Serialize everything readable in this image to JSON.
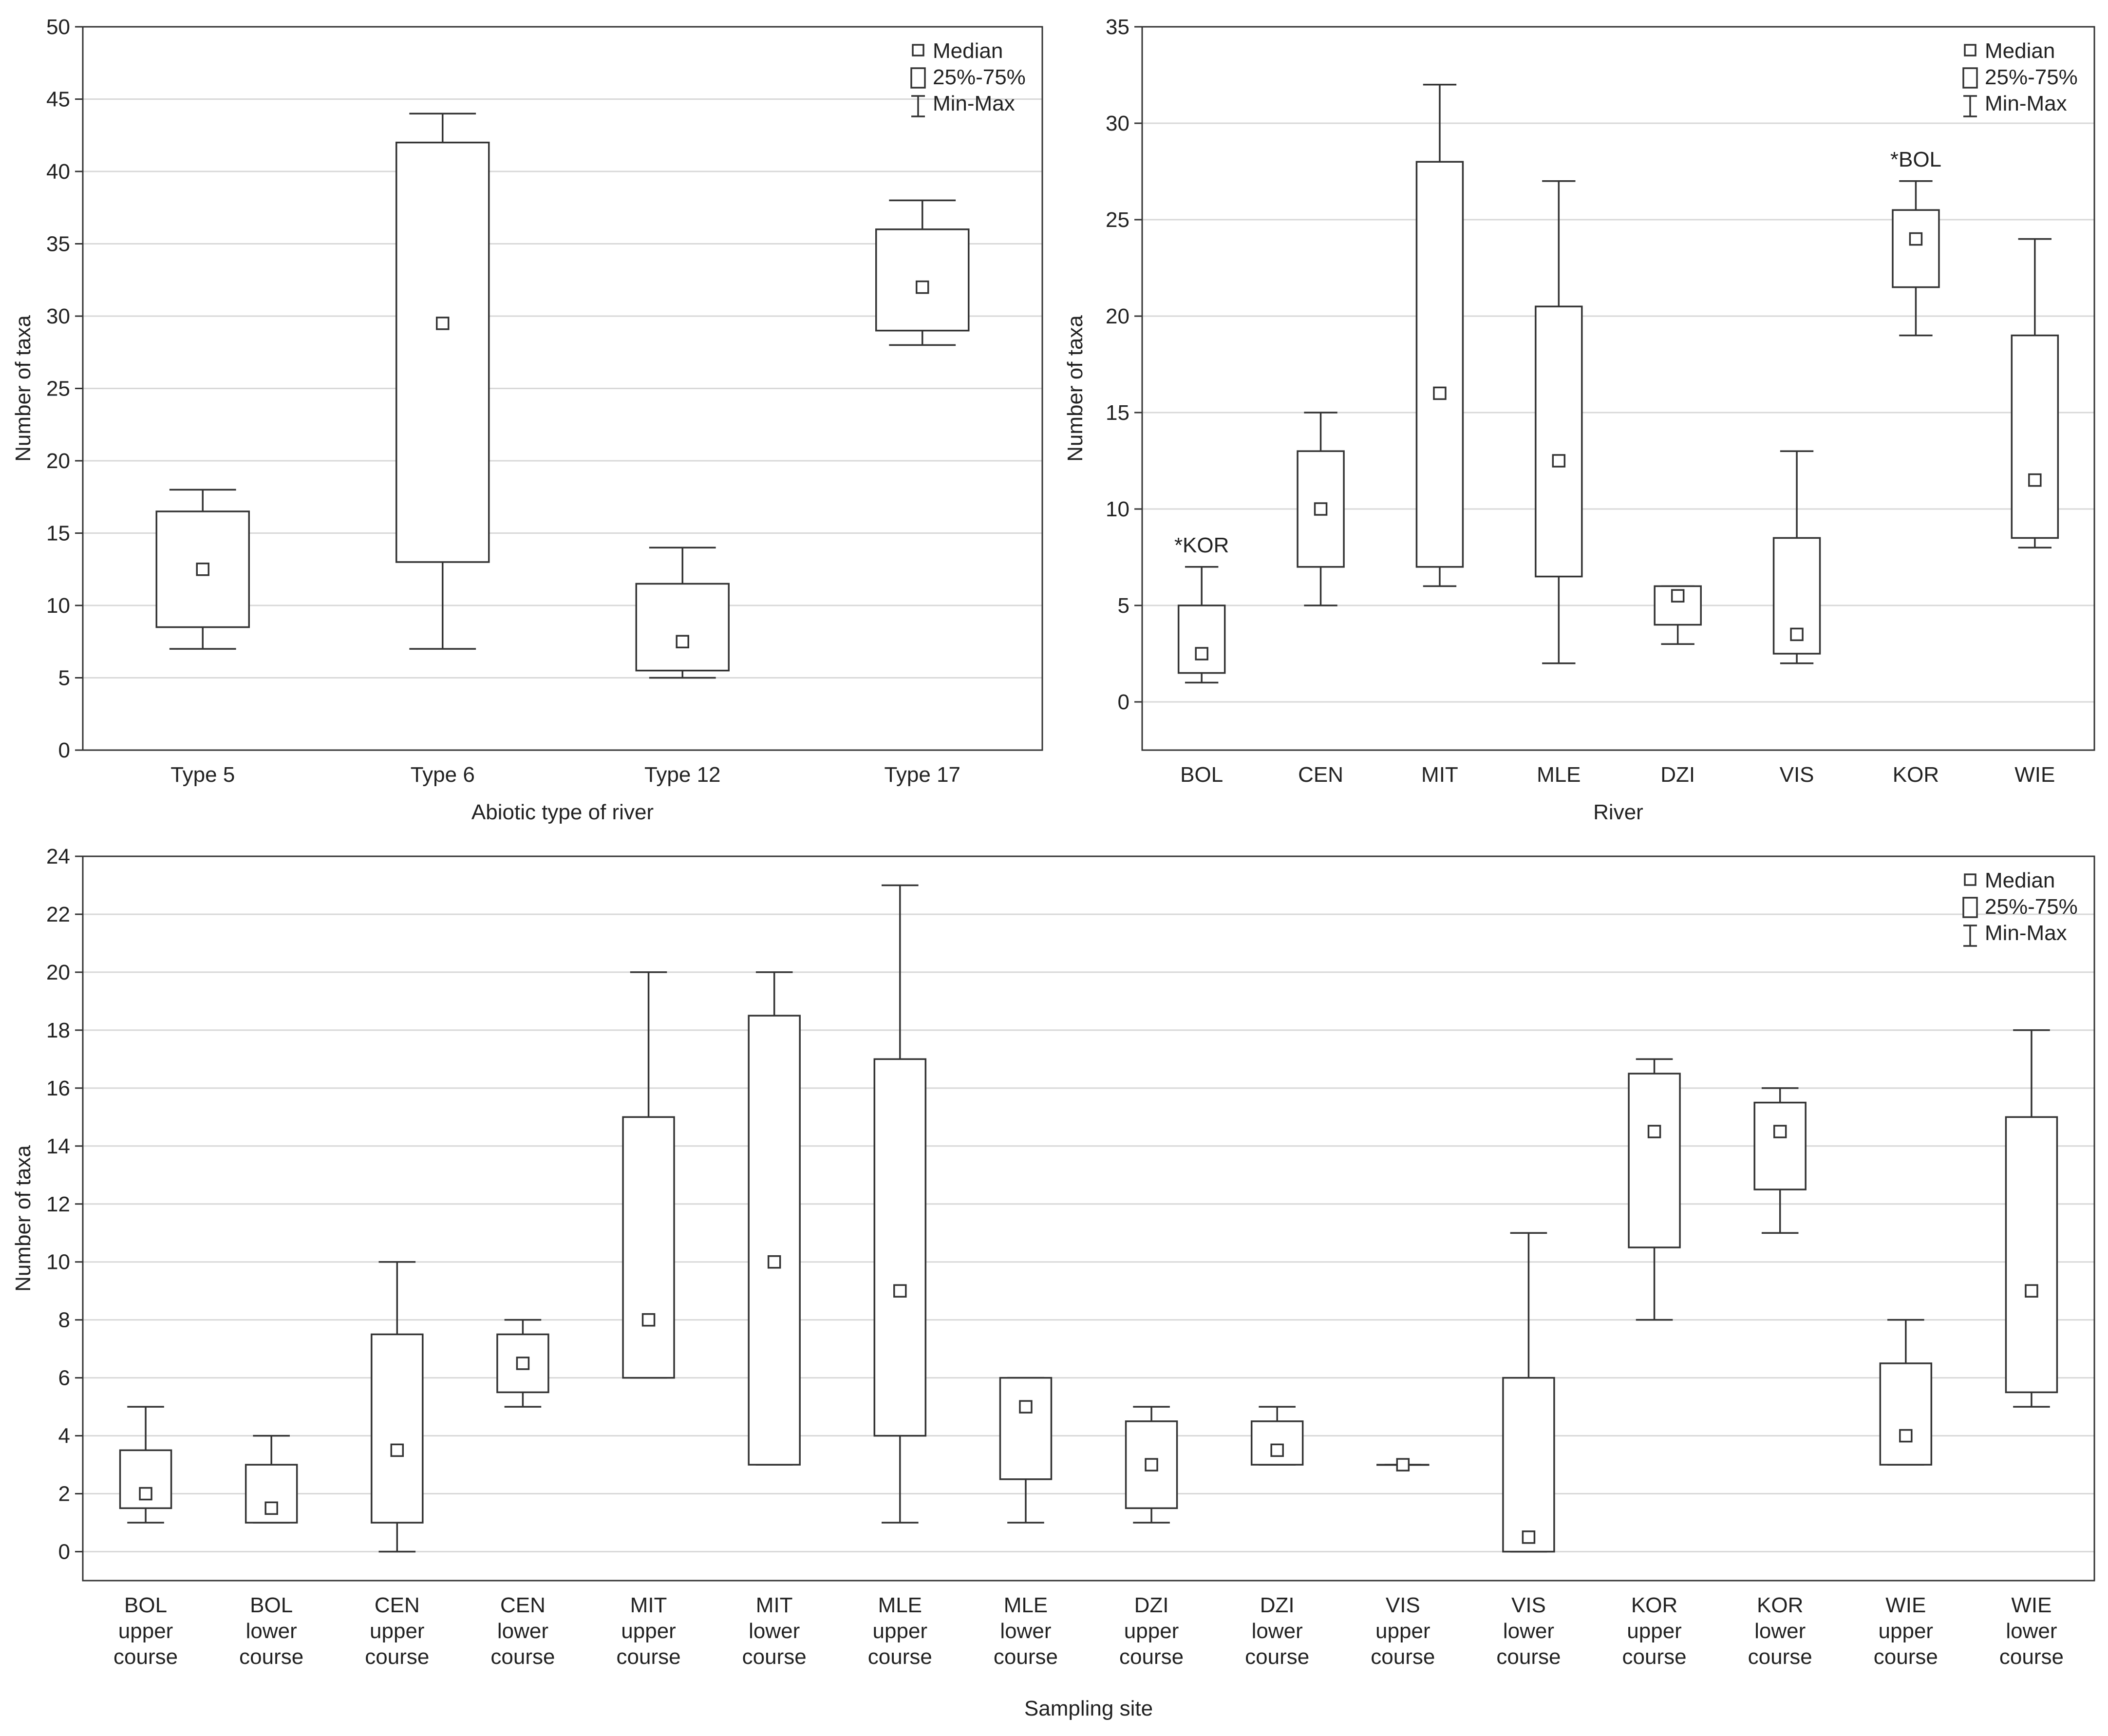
{
  "chart_data": [
    {
      "type": "box",
      "xlabel": "Abiotic type of river",
      "ylabel": "Number of taxa",
      "ylim": [
        0,
        50
      ],
      "ytick_step": 5,
      "legend": {
        "position": "top-right",
        "median": "Median",
        "box": "25%-75%",
        "range": "Min-Max"
      },
      "categories": [
        "Type 5",
        "Type 6",
        "Type 12",
        "Type 17"
      ],
      "category_lines": [
        [],
        [],
        [],
        []
      ],
      "series": [
        {
          "min": 7,
          "q1": 8.5,
          "median": 12.5,
          "q3": 16.5,
          "max": 18
        },
        {
          "min": 7,
          "q1": 13,
          "median": 29.5,
          "q3": 42,
          "max": 44
        },
        {
          "min": 5,
          "q1": 5.5,
          "median": 7.5,
          "q3": 11.5,
          "max": 14
        },
        {
          "min": 28,
          "q1": 29,
          "median": 32,
          "q3": 36,
          "max": 38
        }
      ],
      "annotations": []
    },
    {
      "type": "box",
      "xlabel": "River",
      "ylabel": "Number of taxa",
      "ylim": [
        -2.5,
        35
      ],
      "ytick_step": 5,
      "legend": {
        "position": "top-right",
        "median": "Median",
        "box": "25%-75%",
        "range": "Min-Max"
      },
      "categories": [
        "BOL",
        "CEN",
        "MIT",
        "MLE",
        "DZI",
        "VIS",
        "KOR",
        "WIE"
      ],
      "category_lines": [
        [],
        [],
        [],
        [],
        [],
        [],
        [],
        []
      ],
      "series": [
        {
          "min": 1,
          "q1": 1.5,
          "median": 2.5,
          "q3": 5,
          "max": 7
        },
        {
          "min": 5,
          "q1": 7,
          "median": 10,
          "q3": 13,
          "max": 15
        },
        {
          "min": 6,
          "q1": 7,
          "median": 16,
          "q3": 28,
          "max": 32
        },
        {
          "min": 2,
          "q1": 6.5,
          "median": 12.5,
          "q3": 20.5,
          "max": 27
        },
        {
          "min": 3,
          "q1": 4,
          "median": 5.5,
          "q3": 6,
          "max": 6
        },
        {
          "min": 2,
          "q1": 2.5,
          "median": 3.5,
          "q3": 8.5,
          "max": 13
        },
        {
          "min": 19,
          "q1": 21.5,
          "median": 24,
          "q3": 25.5,
          "max": 27
        },
        {
          "min": 8,
          "q1": 8.5,
          "median": 11.5,
          "q3": 19,
          "max": 24
        }
      ],
      "annotations": [
        {
          "category_index": 0,
          "text": "*KOR",
          "y": 7
        },
        {
          "category_index": 6,
          "text": "*BOL",
          "y": 27
        }
      ]
    },
    {
      "type": "box",
      "xlabel": "Sampling site",
      "ylabel": "Number of taxa",
      "ylim": [
        -1,
        24
      ],
      "ytick_step": 2,
      "legend": {
        "position": "top-right",
        "median": "Median",
        "box": "25%-75%",
        "range": "Min-Max"
      },
      "categories": [
        "BOL upper course",
        "BOL lower course",
        "CEN upper course",
        "CEN lower course",
        "MIT upper course",
        "MIT lower course",
        "MLE upper course",
        "MLE lower course",
        "DZI upper course",
        "DZI lower course",
        "VIS upper course",
        "VIS lower course",
        "KOR upper course",
        "KOR lower course",
        "WIE upper course",
        "WIE lower course"
      ],
      "category_lines": [
        [
          "BOL",
          "upper",
          "course"
        ],
        [
          "BOL",
          "lower",
          "course"
        ],
        [
          "CEN",
          "upper",
          "course"
        ],
        [
          "CEN",
          "lower",
          "course"
        ],
        [
          "MIT",
          "upper",
          "course"
        ],
        [
          "MIT",
          "lower",
          "course"
        ],
        [
          "MLE",
          "upper",
          "course"
        ],
        [
          "MLE",
          "lower",
          "course"
        ],
        [
          "DZI",
          "upper",
          "course"
        ],
        [
          "DZI",
          "lower",
          "course"
        ],
        [
          "VIS",
          "upper",
          "course"
        ],
        [
          "VIS",
          "lower",
          "course"
        ],
        [
          "KOR",
          "upper",
          "course"
        ],
        [
          "KOR",
          "lower",
          "course"
        ],
        [
          "WIE",
          "upper",
          "course"
        ],
        [
          "WIE",
          "lower",
          "course"
        ]
      ],
      "series": [
        {
          "min": 1,
          "q1": 1.5,
          "median": 2,
          "q3": 3.5,
          "max": 5
        },
        {
          "min": 1,
          "q1": 1,
          "median": 1.5,
          "q3": 3,
          "max": 4
        },
        {
          "min": 0,
          "q1": 1,
          "median": 3.5,
          "q3": 7.5,
          "max": 10
        },
        {
          "min": 5,
          "q1": 5.5,
          "median": 6.5,
          "q3": 7.5,
          "max": 8
        },
        {
          "min": 6,
          "q1": 6,
          "median": 8,
          "q3": 15,
          "max": 20
        },
        {
          "min": 3,
          "q1": 3,
          "median": 10,
          "q3": 18.5,
          "max": 20
        },
        {
          "min": 1,
          "q1": 4,
          "median": 9,
          "q3": 17,
          "max": 23
        },
        {
          "min": 1,
          "q1": 2.5,
          "median": 5,
          "q3": 6,
          "max": 6
        },
        {
          "min": 1,
          "q1": 1.5,
          "median": 3,
          "q3": 4.5,
          "max": 5
        },
        {
          "min": 3,
          "q1": 3,
          "median": 3.5,
          "q3": 4.5,
          "max": 5
        },
        {
          "min": 3,
          "q1": 3,
          "median": 3,
          "q3": 3,
          "max": 3
        },
        {
          "min": 0,
          "q1": 0,
          "median": 0.5,
          "q3": 6,
          "max": 11
        },
        {
          "min": 8,
          "q1": 10.5,
          "median": 14.5,
          "q3": 16.5,
          "max": 17
        },
        {
          "min": 11,
          "q1": 12.5,
          "median": 14.5,
          "q3": 15.5,
          "max": 16
        },
        {
          "min": 3,
          "q1": 3,
          "median": 4,
          "q3": 6.5,
          "max": 8
        },
        {
          "min": 5,
          "q1": 5.5,
          "median": 9,
          "q3": 15,
          "max": 18
        }
      ],
      "annotations": []
    }
  ]
}
